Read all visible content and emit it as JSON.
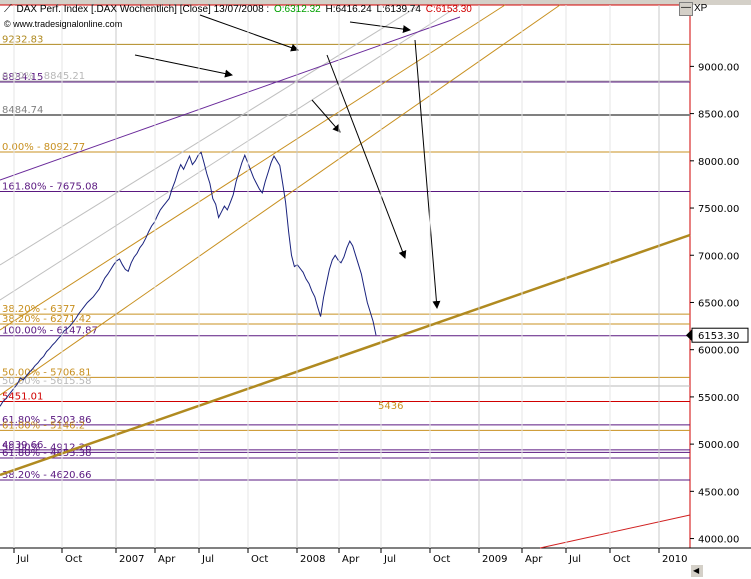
{
  "header": {
    "symbol_label": "DAX Perf. Index [.DAX Wochentlich] [Close] 13/07/2008 :",
    "open_label": "O:6312.32",
    "high_label": "H:6416.24",
    "low_label": "L:6139.74",
    "close_label": "C:6153.30",
    "source_label": "© www.tradesignalonline.com",
    "axis_label": "XP",
    "minimize_icon": "minimize-icon",
    "colors": {
      "open": "#00a000",
      "close": "#d00000",
      "text": "#000000"
    }
  },
  "chart_data": {
    "type": "line",
    "ylim": [
      3900,
      9650
    ],
    "y_ticks": [
      4000,
      4500,
      5000,
      5500,
      6000,
      6500,
      7000,
      7500,
      8000,
      8500,
      9000
    ],
    "y_tick_labels": [
      "4000.00",
      "4500.00",
      "5000.00",
      "5500.00",
      "6000.00",
      "6500.00",
      "7000.00",
      "7500.00",
      "8000.00",
      "8500.00",
      "9000.00"
    ],
    "x_tick_labels": [
      {
        "label": "Jul",
        "year": false
      },
      {
        "label": "Oct",
        "year": false
      },
      {
        "label": "2007",
        "year": true
      },
      {
        "label": "Apr",
        "year": false
      },
      {
        "label": "Jul",
        "year": false
      },
      {
        "label": "Oct",
        "year": false
      },
      {
        "label": "2008",
        "year": true
      },
      {
        "label": "Apr",
        "year": false
      },
      {
        "label": "Jul",
        "year": false
      },
      {
        "label": "Oct",
        "year": false
      },
      {
        "label": "2009",
        "year": true
      },
      {
        "label": "Apr",
        "year": false
      },
      {
        "label": "Jul",
        "year": false
      },
      {
        "label": "Oct",
        "year": false
      },
      {
        "label": "2010",
        "year": true
      }
    ],
    "last_value": 6153.3,
    "last_value_label": "6153.30",
    "series": [
      {
        "values": [
          5400,
          5450,
          5480,
          5520,
          5560,
          5600,
          5640,
          5700,
          5680,
          5720,
          5760,
          5790,
          5830,
          5860,
          5900,
          5930,
          5980,
          6010,
          6050,
          6080,
          6120,
          6150,
          6200,
          6220,
          6250,
          6290,
          6330,
          6380,
          6420,
          6460,
          6500,
          6530,
          6560,
          6600,
          6640,
          6700,
          6760,
          6800,
          6850,
          6900,
          6940,
          6960,
          6900,
          6850,
          6830,
          6920,
          6980,
          7020,
          7080,
          7120,
          7180,
          7250,
          7310,
          7350,
          7420,
          7480,
          7520,
          7560,
          7600,
          7700,
          7780,
          7880,
          7960,
          7910,
          7980,
          8050,
          7960,
          8000,
          8060,
          8090,
          7980,
          7860,
          7760,
          7600,
          7540,
          7400,
          7460,
          7520,
          7480,
          7560,
          7640,
          7780,
          7880,
          7980,
          8060,
          7980,
          7900,
          7820,
          7760,
          7700,
          7660,
          7780,
          7880,
          7980,
          8050,
          8000,
          7950,
          7760,
          7560,
          7250,
          7000,
          6880,
          6900,
          6860,
          6820,
          6750,
          6700,
          6620,
          6560,
          6450,
          6350,
          6550,
          6700,
          6850,
          6950,
          7000,
          6950,
          6920,
          6980,
          7080,
          7150,
          7100,
          7000,
          6900,
          6800,
          6650,
          6500,
          6400,
          6300,
          6153
        ]
      }
    ],
    "horizontal_levels": [
      {
        "label": "9232.83",
        "value": 9232.83,
        "color": "#b08a20"
      },
      {
        "label": "8834.15",
        "value": 8834.15,
        "color": "#5a1880"
      },
      {
        "label": "0.00% - 8845.21",
        "value": 8845.21,
        "color": "#b8b8b8"
      },
      {
        "label": "8484.74",
        "value": 8484.74,
        "color": "#808080"
      },
      {
        "label": "0.00% - 8092.77",
        "value": 8092.77,
        "color": "#c89020"
      },
      {
        "label": "161.80% - 7675.08",
        "value": 7675.08,
        "color": "#5a1880"
      },
      {
        "label": "38.20% - 6377",
        "value": 6377,
        "color": "#c89020"
      },
      {
        "label": "38.20% - 6271.42",
        "value": 6271.42,
        "color": "#c89020"
      },
      {
        "label": "100.00% - 6147.87",
        "value": 6147.87,
        "color": "#5a1880"
      },
      {
        "label": "50.00% - 5706.81",
        "value": 5706.81,
        "color": "#c89020"
      },
      {
        "label": "50.00% - 5615.58",
        "value": 5615.58,
        "color": "#b8b8b8"
      },
      {
        "label": "5451.01",
        "value": 5451.01,
        "color": "#d00000"
      },
      {
        "label": "61.80% - 5203.86",
        "value": 5203.86,
        "color": "#5a1880"
      },
      {
        "label": "61.80% - 5146.2",
        "value": 5146.2,
        "color": "#c89020"
      },
      {
        "label": "4939.66",
        "value": 4939.66,
        "color": "#5a1880"
      },
      {
        "label": "50.00% - 4912.26",
        "value": 4912.26,
        "color": "#5a1880"
      },
      {
        "label": "61.80% - 4853.38",
        "value": 4853.38,
        "color": "#5a1880"
      },
      {
        "label": "38.20% - 4620.66",
        "value": 4620.66,
        "color": "#5a1880"
      }
    ],
    "annotation_label": "5436",
    "annotation_value": 5436
  }
}
